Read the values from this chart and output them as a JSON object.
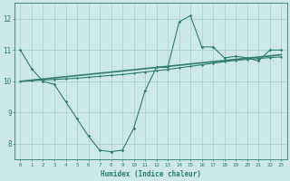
{
  "title": "",
  "xlabel": "Humidex (Indice chaleur)",
  "ylabel": "",
  "background_color": "#cce8e8",
  "grid_color": "#aacccc",
  "line_color": "#2e7d6e",
  "xlim": [
    -0.5,
    23.5
  ],
  "ylim": [
    7.5,
    12.5
  ],
  "xticks": [
    0,
    1,
    2,
    3,
    4,
    5,
    6,
    7,
    8,
    9,
    10,
    11,
    12,
    13,
    14,
    15,
    16,
    17,
    18,
    19,
    20,
    21,
    22,
    23
  ],
  "yticks": [
    8,
    9,
    10,
    11,
    12
  ],
  "curve1_x": [
    0,
    1,
    2,
    3,
    4,
    5,
    6,
    7,
    8,
    9,
    10,
    11,
    12,
    13,
    14,
    15,
    16,
    17,
    18,
    19,
    20,
    21,
    22,
    23
  ],
  "curve1_y": [
    11.0,
    10.4,
    10.0,
    9.9,
    9.35,
    8.8,
    8.25,
    7.8,
    7.75,
    7.8,
    8.5,
    9.7,
    10.45,
    10.45,
    11.9,
    12.1,
    11.1,
    11.1,
    10.75,
    10.8,
    10.75,
    10.65,
    11.0,
    11.0
  ],
  "curve2_x": [
    0,
    23
  ],
  "curve2_y": [
    10.0,
    10.85
  ],
  "curve3_x": [
    0,
    1,
    2,
    3,
    4,
    5,
    6,
    7,
    8,
    9,
    10,
    11,
    12,
    13,
    14,
    15,
    16,
    17,
    18,
    19,
    20,
    21,
    22,
    23
  ],
  "curve3_y": [
    10.0,
    10.02,
    10.04,
    10.06,
    10.08,
    10.1,
    10.13,
    10.16,
    10.19,
    10.22,
    10.26,
    10.3,
    10.34,
    10.38,
    10.43,
    10.48,
    10.53,
    10.58,
    10.63,
    10.67,
    10.7,
    10.73,
    10.76,
    10.78
  ]
}
